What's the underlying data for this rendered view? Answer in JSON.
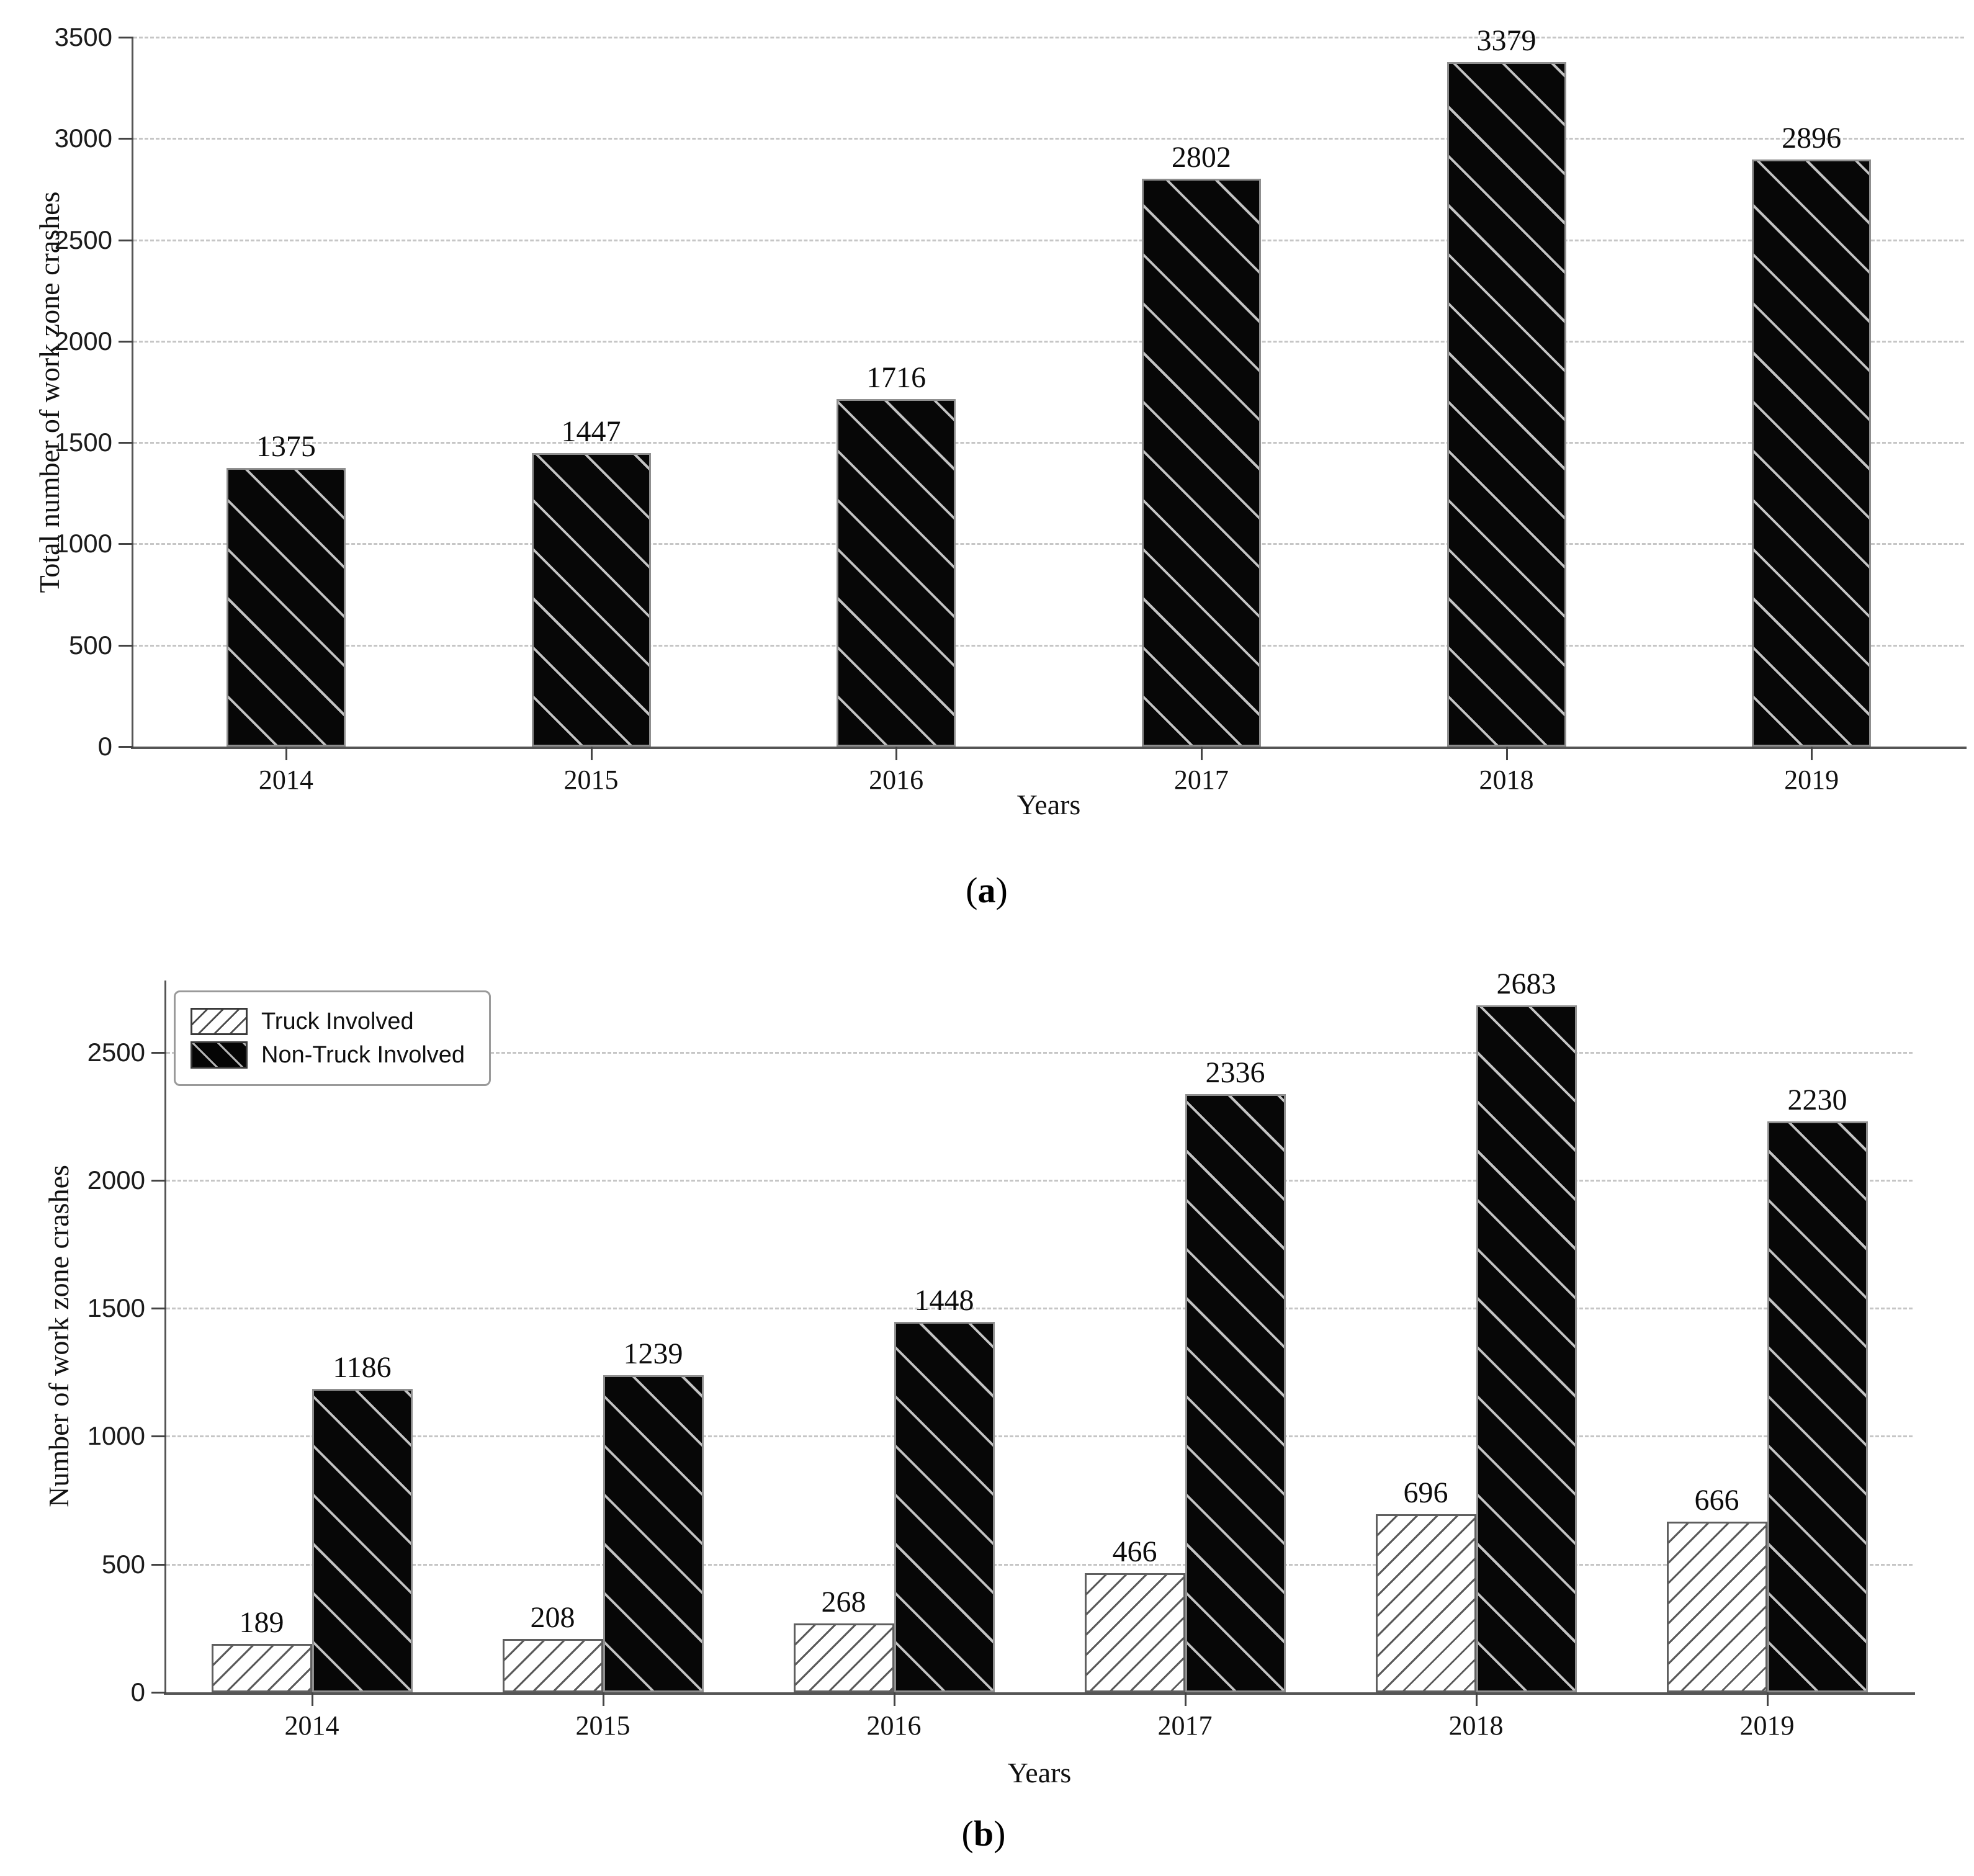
{
  "figure": {
    "background": "#ffffff",
    "text_color": "#111111",
    "grid_color": "#c6c6c6",
    "bar_black_color": "#070707",
    "bar_white_color": "#ffffff"
  },
  "chart_data": [
    {
      "panel": "a",
      "type": "bar",
      "categories": [
        "2014",
        "2015",
        "2016",
        "2017",
        "2018",
        "2019"
      ],
      "series": [
        {
          "name": "Total work zone crashes",
          "pattern": "black-diagonal-hatch",
          "values": [
            1375,
            1447,
            1716,
            2802,
            3379,
            2896
          ]
        }
      ],
      "value_labels": [
        1375,
        1447,
        1716,
        2802,
        3379,
        2896
      ],
      "xlabel": "Years",
      "ylabel": "Total number of work zone crashes",
      "ylim": [
        0,
        3500
      ],
      "ytick_step": 500,
      "ytick_max": 3500,
      "grid": "dashed-horizontal",
      "legend": null,
      "caption": {
        "open": "(",
        "letter": "a",
        "close": ")"
      }
    },
    {
      "panel": "b",
      "type": "bar",
      "categories": [
        "2014",
        "2015",
        "2016",
        "2017",
        "2018",
        "2019"
      ],
      "series": [
        {
          "name": "Truck Involved",
          "pattern": "white-diagonal-hatch",
          "values": [
            189,
            208,
            268,
            466,
            696,
            666
          ]
        },
        {
          "name": "Non-Truck Involved",
          "pattern": "black-diagonal-hatch",
          "values": [
            1186,
            1239,
            1448,
            2336,
            2683,
            2230
          ]
        }
      ],
      "xlabel": "Years",
      "ylabel": "Number of work zone crashes",
      "ylim": [
        0,
        2780
      ],
      "ytick_step": 500,
      "ytick_max": 2500,
      "grid": "dashed-horizontal",
      "legend": {
        "position": "upper-left",
        "items": [
          "Truck Involved",
          "Non-Truck Involved"
        ]
      },
      "caption": {
        "open": "(",
        "letter": "b",
        "close": ")"
      }
    }
  ]
}
